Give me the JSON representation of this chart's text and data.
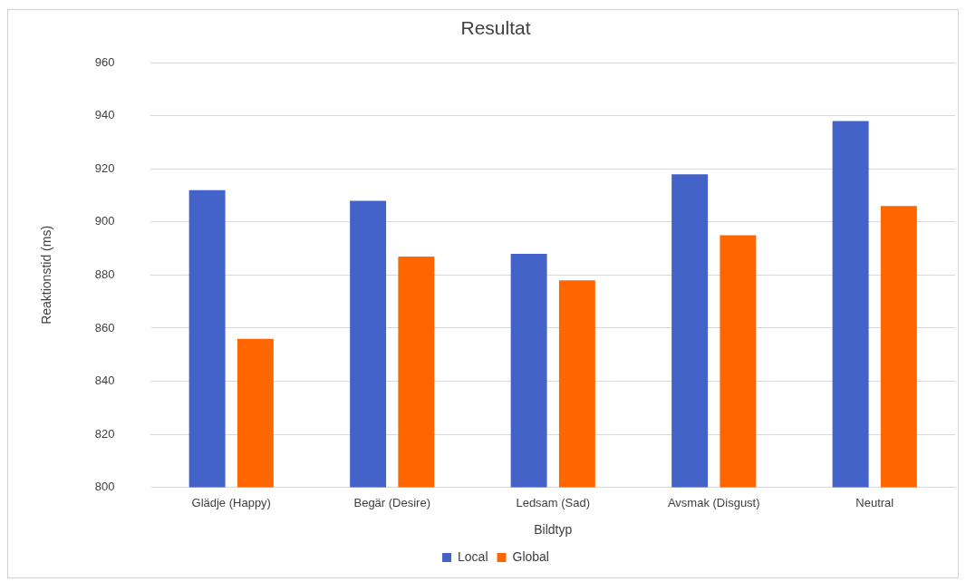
{
  "chart_data": {
    "type": "bar",
    "title": "Resultat",
    "xlabel": "Bildtyp",
    "ylabel": "Reaktionstid (ms)",
    "categories": [
      "Glädje (Happy)",
      "Begär (Desire)",
      "Ledsam (Sad)",
      "Avsmak (Disgust)",
      "Neutral"
    ],
    "series": [
      {
        "name": "Local",
        "color": "#4463c9",
        "values": [
          912,
          908,
          888,
          918,
          938
        ]
      },
      {
        "name": "Global",
        "color": "#fe6600",
        "values": [
          856,
          887,
          878,
          895,
          906
        ]
      }
    ],
    "ylim": [
      800,
      960
    ],
    "yticks": [
      800,
      820,
      840,
      860,
      880,
      900,
      920,
      940,
      960
    ],
    "grid": "y",
    "legend": "bottom"
  }
}
